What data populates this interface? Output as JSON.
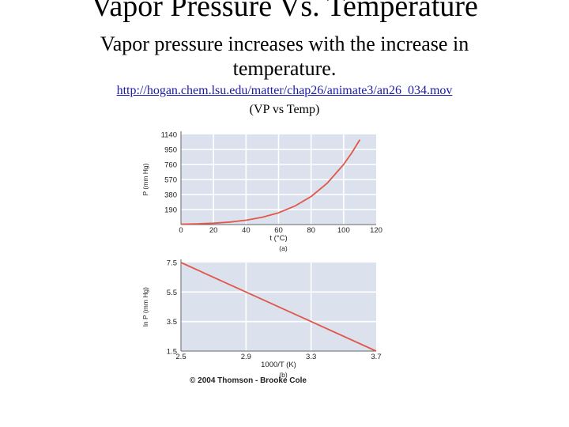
{
  "slide": {
    "title": "Vapor Pressure Vs. Temperature",
    "text": "Vapor pressure increases with the increase in temperature.",
    "link": "http://hogan.chem.lsu.edu/matter/chap26/animate3/an26_034.mov",
    "note": "(VP vs Temp)"
  },
  "colors": {
    "plot_bg": "#dce1ee",
    "grid": "#ffffff",
    "curve": "#e0584a"
  },
  "chart_data": [
    {
      "type": "line",
      "panel_label": "(a)",
      "xlabel": "t (°C)",
      "ylabel": "P (mm Hg)",
      "xlim": [
        0,
        120
      ],
      "ylim": [
        0,
        1140
      ],
      "xticks": [
        0,
        20,
        40,
        60,
        80,
        100,
        120
      ],
      "yticks": [
        190,
        380,
        570,
        760,
        950,
        1140
      ],
      "grid": true,
      "series": [
        {
          "x": [
            0,
            10,
            20,
            30,
            40,
            50,
            60,
            70,
            80,
            90,
            100,
            105,
            110
          ],
          "y": [
            4.6,
            9.2,
            17.5,
            31.8,
            55.3,
            92.5,
            149.4,
            233.7,
            355.1,
            525.8,
            760,
            906,
            1074
          ]
        }
      ]
    },
    {
      "type": "line",
      "panel_label": "(b)",
      "xlabel": "1000/T (K)",
      "ylabel": "ln P (mm Hg)",
      "xlim": [
        2.5,
        3.7
      ],
      "ylim": [
        1.5,
        7.5
      ],
      "xticks": [
        2.5,
        2.9,
        3.3,
        3.7
      ],
      "yticks": [
        1.5,
        3.5,
        5.5,
        7.5
      ],
      "grid": true,
      "series": [
        {
          "x": [
            2.5,
            3.7
          ],
          "y": [
            7.5,
            1.5
          ]
        }
      ]
    }
  ],
  "credit": "© 2004 Thomson - Brooke Cole"
}
